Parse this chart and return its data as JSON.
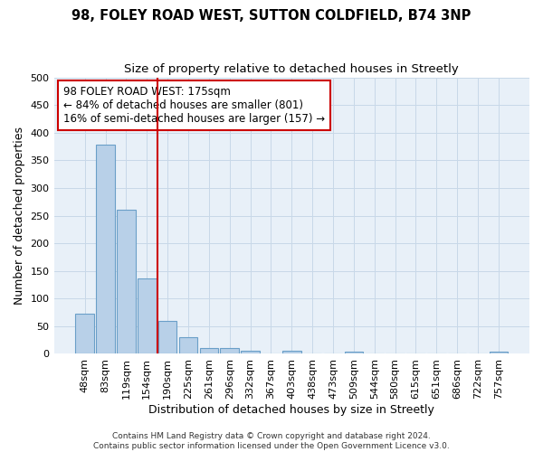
{
  "title1": "98, FOLEY ROAD WEST, SUTTON COLDFIELD, B74 3NP",
  "title2": "Size of property relative to detached houses in Streetly",
  "xlabel": "Distribution of detached houses by size in Streetly",
  "ylabel": "Number of detached properties",
  "categories": [
    "48sqm",
    "83sqm",
    "119sqm",
    "154sqm",
    "190sqm",
    "225sqm",
    "261sqm",
    "296sqm",
    "332sqm",
    "367sqm",
    "403sqm",
    "438sqm",
    "473sqm",
    "509sqm",
    "544sqm",
    "580sqm",
    "615sqm",
    "651sqm",
    "686sqm",
    "722sqm",
    "757sqm"
  ],
  "values": [
    72,
    378,
    260,
    137,
    60,
    30,
    10,
    10,
    5,
    0,
    6,
    0,
    0,
    4,
    0,
    0,
    0,
    0,
    0,
    0,
    4
  ],
  "bar_color": "#b8d0e8",
  "bar_edge_color": "#6a9fc8",
  "vline_color": "#cc0000",
  "vline_x": 3.5,
  "annotation_line1": "98 FOLEY ROAD WEST: 175sqm",
  "annotation_line2": "← 84% of detached houses are smaller (801)",
  "annotation_line3": "16% of semi-detached houses are larger (157) →",
  "annotation_box_color": "#ffffff",
  "annotation_box_edge": "#cc0000",
  "ylim": [
    0,
    500
  ],
  "yticks": [
    0,
    50,
    100,
    150,
    200,
    250,
    300,
    350,
    400,
    450,
    500
  ],
  "grid_color": "#c8d8e8",
  "bg_color": "#e8f0f8",
  "footer": "Contains HM Land Registry data © Crown copyright and database right 2024.\nContains public sector information licensed under the Open Government Licence v3.0.",
  "title_fontsize": 10.5,
  "subtitle_fontsize": 9.5,
  "tick_fontsize": 8,
  "label_fontsize": 9,
  "ann_fontsize": 8.5
}
